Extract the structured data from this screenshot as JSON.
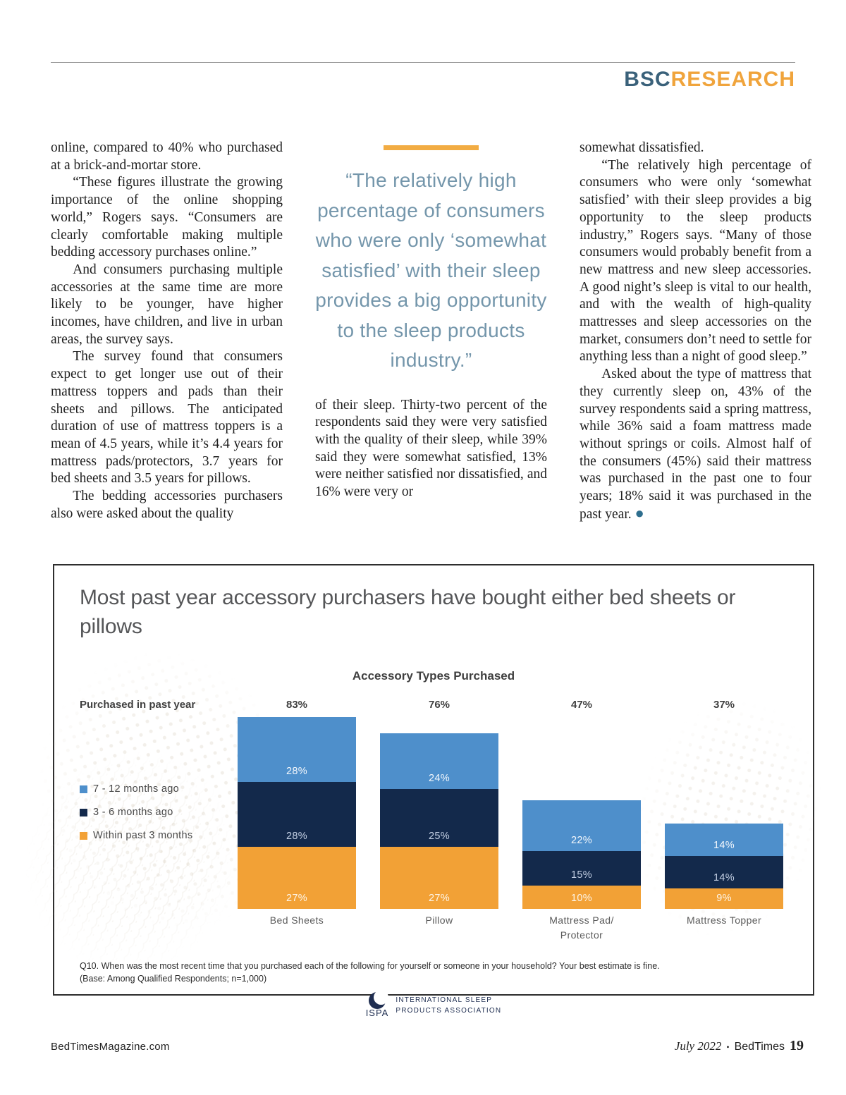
{
  "header": {
    "brand_primary": "BSC",
    "brand_secondary": "RESEARCH",
    "brand_primary_color": "#3a617a",
    "brand_secondary_color": "#f0a43c"
  },
  "columns": {
    "col1": {
      "paragraphs": [
        "online, compared to 40% who purchased at a brick-and-mortar store.",
        "“These figures illustrate the growing importance of the online shopping world,” Rogers says. “Consumers are clearly comfortable making multiple bedding accessory purchases online.”",
        "And consumers purchasing multiple accessories at the same time are more likely to be younger, have higher incomes, have children, and live in urban areas, the survey says.",
        "The survey found that consumers expect to get longer use out of their mattress toppers and pads than their sheets and pillows. The anticipated duration of use of mattress toppers is a mean of 4.5 years, while it’s 4.4 years for mattress pads/protectors, 3.7 years for bed sheets and 3.5 years for pillows.",
        "The bedding accessories purchasers also were asked about the quality"
      ]
    },
    "col2": {
      "paragraphs": [
        "of their sleep. Thirty-two percent of the respondents said they were very satisfied with the quality of their sleep, while 39% said they were somewhat satisfied, 13% were neither satisfied nor dissatisfied, and 16% were very or"
      ]
    },
    "col3": {
      "paragraphs": [
        "somewhat dissatisfied.",
        "“The relatively high percentage of consumers who were only ‘somewhat satisfied’ with their sleep provides a big opportunity to the sleep products industry,” Rogers says. “Many of those consumers would probably benefit from a new mattress and new sleep accessories. A good night’s sleep is vital to our health, and with the wealth of high-quality mattresses and sleep accessories on the market, consumers don’t need to settle for anything less than a night of good sleep.”",
        "Asked about the type of mattress that they currently sleep on, 43% of the survey respondents said a spring mattress, while 36% said a foam mattress made without springs or coils. Almost half of the consumers (45%) said their mattress was purchased in the past one to four years; 18% said it was purchased in the past year."
      ],
      "end_bullet": "●"
    }
  },
  "pullquote": {
    "text": "“The relatively high percentage of consumers who were only ‘somewhat satisfied’ with their sleep provides a big opportunity to the sleep products industry.”",
    "text_color": "#7496ab",
    "rule_color": "#f2ac43"
  },
  "chart_data": {
    "type": "bar",
    "variant": "stacked-vertical",
    "heading": "Most past year accessory purchasers have bought either bed sheets or pillows",
    "title": "Accessory Types Purchased",
    "row_label": "Purchased in past year",
    "categories": [
      "Bed Sheets",
      "Pillow",
      "Mattress Pad/\nProtector",
      "Mattress Topper"
    ],
    "totals_pct": [
      83,
      76,
      47,
      37
    ],
    "series": [
      {
        "name": "7 - 12 months ago",
        "color": "#4e8fcb",
        "value_label_color": "#f3f7fc",
        "values": [
          28,
          24,
          22,
          14
        ]
      },
      {
        "name": "3 - 6 months ago",
        "color": "#13294b",
        "value_label_color": "#c3cfe3",
        "values": [
          28,
          25,
          15,
          14
        ]
      },
      {
        "name": "Within past 3 months",
        "color": "#f2a136",
        "value_label_color": "#fdf6ea",
        "values": [
          27,
          27,
          10,
          9
        ]
      }
    ],
    "stack_order_top_to_bottom": [
      "7 - 12 months ago",
      "3 - 6 months ago",
      "Within past 3 months"
    ],
    "ylim": [
      0,
      83
    ],
    "grid": false,
    "legend_position": "left",
    "footnote_line1": "Q10. When was the most recent time that you purchased each of the following for yourself or someone in your household? Your best estimate is fine.",
    "footnote_line2": "(Base: Among Qualified Respondents; n=1,000)"
  },
  "ispa_logo": {
    "acronym": "ISPA",
    "name_line1": "INTERNATIONAL SLEEP",
    "name_line2": "PRODUCTS ASSOCIATION",
    "color": "#1e2d50"
  },
  "footer": {
    "site": "BedTimesMagazine.com",
    "issue": "July 2022",
    "separator": "•",
    "magazine": "BedTimes",
    "page_number": "19"
  }
}
